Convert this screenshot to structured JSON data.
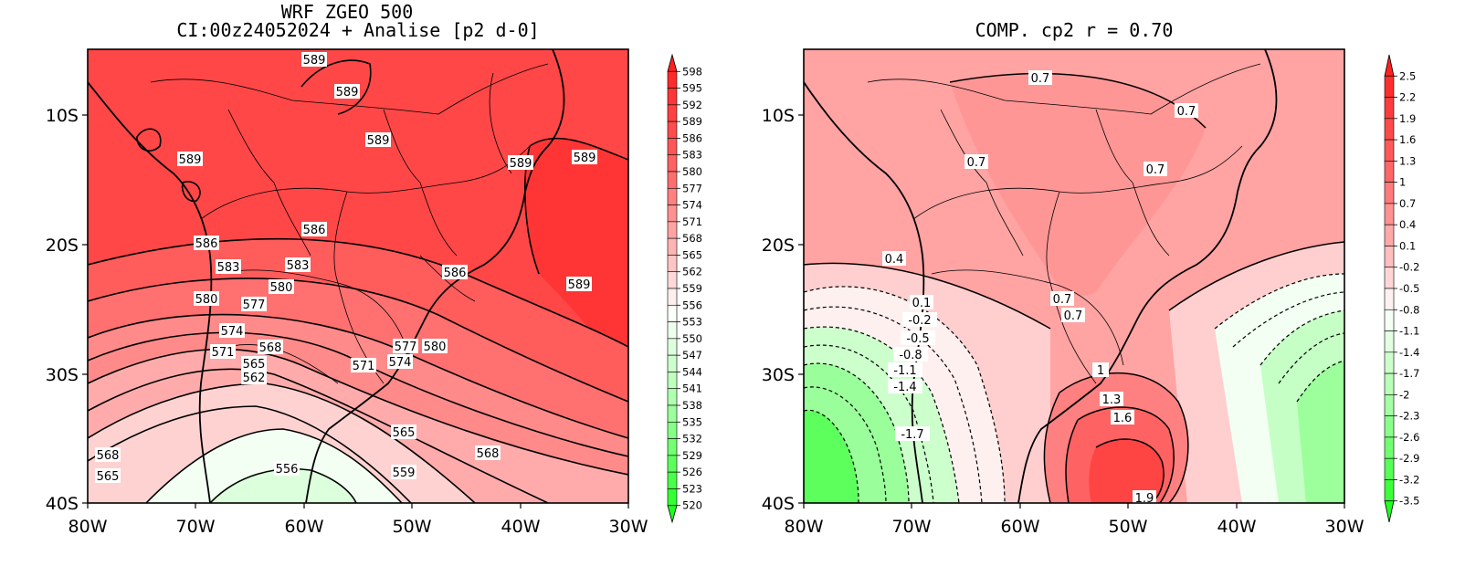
{
  "left_panel": {
    "title_line1": "WRF ZGEO 500",
    "title_line2": "CI:00z24052024 + Analise  [p2 d-0]",
    "x_ticks": [
      "80W",
      "70W",
      "60W",
      "50W",
      "40W",
      "30W"
    ],
    "y_ticks": [
      "10S",
      "20S",
      "30S",
      "40S"
    ],
    "colorbar": [
      "598",
      "595",
      "592",
      "589",
      "586",
      "583",
      "580",
      "577",
      "574",
      "571",
      "568",
      "565",
      "562",
      "559",
      "556",
      "553",
      "550",
      "547",
      "544",
      "541",
      "538",
      "535",
      "532",
      "529",
      "526",
      "523",
      "520"
    ],
    "contour_labels": [
      "589",
      "589",
      "589",
      "589",
      "589",
      "589",
      "589",
      "586",
      "586",
      "586",
      "583",
      "583",
      "580",
      "580",
      "580",
      "577",
      "577",
      "574",
      "574",
      "571",
      "571",
      "568",
      "568",
      "568",
      "565",
      "565",
      "565",
      "562",
      "559",
      "556"
    ]
  },
  "right_panel": {
    "title": "COMP. cp2  r =  0.70",
    "x_ticks": [
      "80W",
      "70W",
      "60W",
      "50W",
      "40W",
      "30W"
    ],
    "y_ticks": [
      "10S",
      "20S",
      "30S",
      "40S"
    ],
    "colorbar": [
      "2.5",
      "2.2",
      "1.9",
      "1.6",
      "1.3",
      "1",
      "0.7",
      "0.4",
      "0.1",
      "-0.2",
      "-0.5",
      "-0.8",
      "-1.1",
      "-1.4",
      "-1.7",
      "-2",
      "-2.3",
      "-2.6",
      "-2.9",
      "-3.2",
      "-3.5"
    ],
    "contour_labels": [
      "0.7",
      "0.7",
      "0.7",
      "0.7",
      "0.7",
      "0.7",
      "0.4",
      "0.1",
      "-0.2",
      "-0.5",
      "-0.8",
      "-1.1",
      "-1.4",
      "-1.7",
      "1",
      "1.3",
      "1.6",
      "1.9"
    ]
  },
  "colors": {
    "red_strong": "#ff3a3a",
    "red_mid": "#ff5a5a",
    "red_light": "#ff8a8a",
    "pink": "#ffb4b4",
    "pale_pink": "#ffe8e8",
    "pale_green": "#e6ffe6",
    "green_mid": "#8cff8c",
    "green_strong": "#2eff2e"
  }
}
